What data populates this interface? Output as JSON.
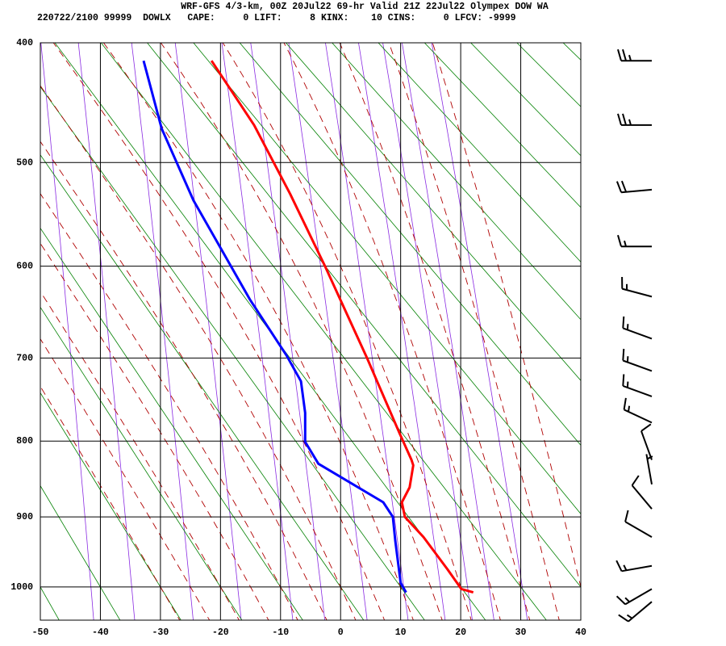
{
  "chart_data": {
    "type": "skewt",
    "title": "WRF-GFS 4/3-km, 00Z 20Jul22 69-hr Valid 21Z 22Jul22 Olympex DOW WA",
    "subtitle": "220722/2100 99999  DOWLX   CAPE:     0 LIFT:     8 KINX:    10 CINS:     0 LFCV: -9999",
    "xlim": [
      -50,
      40
    ],
    "xticks": [
      -50,
      -40,
      -30,
      -20,
      -10,
      0,
      10,
      20,
      30,
      40
    ],
    "ylim": [
      400,
      1050
    ],
    "yticks": [
      400,
      500,
      600,
      700,
      800,
      900,
      1000
    ],
    "grid": true,
    "series": [
      {
        "color": "#ff0000",
        "pressure": [
          414,
          467,
          529,
          600,
          700,
          790,
          824,
          831,
          860,
          880,
          900,
          928,
          974,
          1003,
          1008
        ],
        "values": [
          -21.5,
          -14.4,
          -8.4,
          -2.6,
          4.4,
          9.8,
          11.8,
          12.1,
          11.5,
          10.2,
          10.7,
          13.8,
          17.8,
          20.1,
          22.1
        ]
      },
      {
        "color": "#0000ff",
        "pressure": [
          414,
          470,
          535,
          635,
          697,
          727,
          765,
          801,
          829,
          880,
          900,
          933,
          994,
          1008
        ],
        "values": [
          -32.8,
          -29.8,
          -24.5,
          -15.1,
          -9.0,
          -6.6,
          -5.9,
          -5.9,
          -3.7,
          7.1,
          8.7,
          9.1,
          10.0,
          10.9
        ]
      }
    ],
    "winds": {
      "pressure": [
        414,
        467,
        525,
        580,
        632,
        678,
        715,
        745,
        777,
        824,
        856,
        889,
        928,
        969,
        1003,
        1022
      ],
      "direction": [
        270,
        270,
        265,
        270,
        285,
        290,
        290,
        290,
        295,
        340,
        350,
        320,
        300,
        260,
        240,
        230
      ],
      "speed": [
        25,
        25,
        20,
        15,
        15,
        15,
        15,
        15,
        15,
        10,
        5,
        10,
        10,
        15,
        15,
        15
      ]
    }
  }
}
